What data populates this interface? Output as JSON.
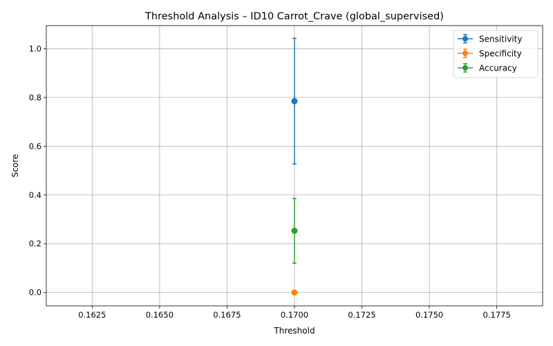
{
  "chart_data": {
    "type": "scatter",
    "title": "Threshold Analysis – ID10 Carrot_Crave (global_supervised)",
    "xlabel": "Threshold",
    "ylabel": "Score",
    "xlim": [
      0.1608,
      0.1792
    ],
    "ylim": [
      -0.055,
      1.095
    ],
    "x_ticks": [
      0.1625,
      0.165,
      0.1675,
      0.17,
      0.1725,
      0.175,
      0.1775
    ],
    "x_tick_labels": [
      "0.1625",
      "0.1650",
      "0.1675",
      "0.1700",
      "0.1725",
      "0.1750",
      "0.1775"
    ],
    "y_ticks": [
      0.0,
      0.2,
      0.4,
      0.6,
      0.8,
      1.0
    ],
    "y_tick_labels": [
      "0.0",
      "0.2",
      "0.4",
      "0.6",
      "0.8",
      "1.0"
    ],
    "grid": true,
    "legend_position": "top-right",
    "series": [
      {
        "name": "Sensitivity",
        "color": "#1f77b4",
        "x": [
          0.17
        ],
        "y": [
          0.785
        ],
        "err": [
          0.258
        ]
      },
      {
        "name": "Specificity",
        "color": "#ff7f0e",
        "x": [
          0.17
        ],
        "y": [
          0.0
        ],
        "err": [
          0.0
        ]
      },
      {
        "name": "Accuracy",
        "color": "#2ca02c",
        "x": [
          0.17
        ],
        "y": [
          0.253
        ],
        "err": [
          0.133
        ]
      }
    ]
  }
}
